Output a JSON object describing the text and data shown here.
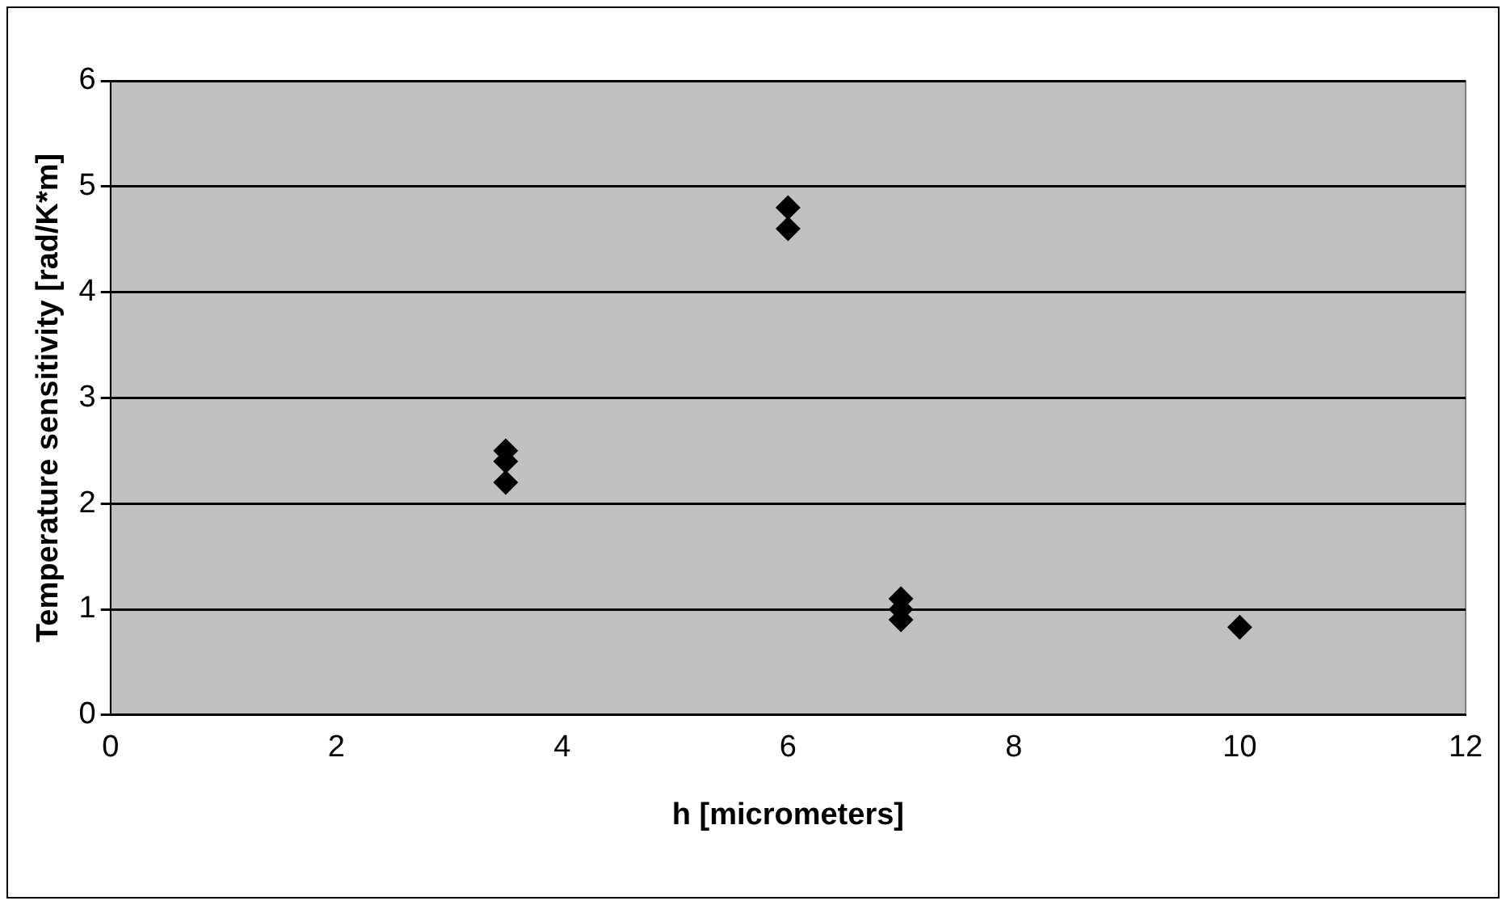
{
  "chart_data": {
    "type": "scatter",
    "xlabel": "h [micrometers]",
    "ylabel": "Temperature sensitivity [rad/K*m]",
    "series": [
      {
        "color": "#000000",
        "x": [
          3.5,
          3.5,
          3.5,
          6,
          6,
          7,
          7,
          7,
          10
        ],
        "values": [
          2.5,
          2.4,
          2.2,
          4.8,
          4.6,
          1.1,
          1.0,
          0.9,
          0.83
        ]
      }
    ],
    "xlim": [
      0,
      12
    ],
    "xticks": [
      0,
      2,
      4,
      6,
      8,
      10,
      12
    ],
    "ylim": [
      0,
      6
    ],
    "yticks": [
      0,
      1,
      2,
      3,
      4,
      5,
      6
    ],
    "grid": "y",
    "marker": "diamond",
    "legend": false
  }
}
